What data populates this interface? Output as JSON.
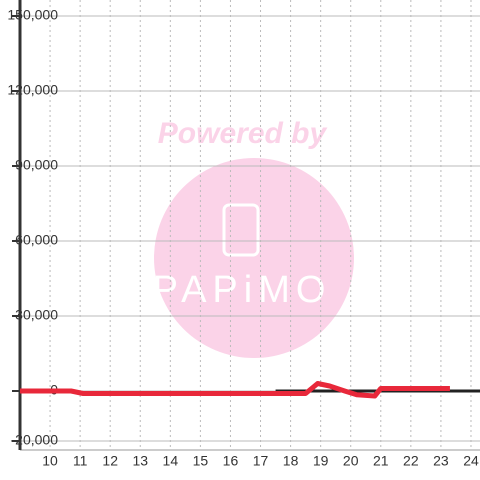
{
  "chart_data": {
    "type": "line",
    "watermark": {
      "title": "Powered by",
      "logo": "PAPiMO"
    },
    "series": [
      {
        "color": "#222222",
        "x": [
          17.5,
          24.3
        ],
        "values": [
          0,
          0
        ]
      },
      {
        "color": "#e8283a",
        "x": [
          9,
          10.7,
          11.1,
          17.5,
          18.5,
          18.9,
          19.3,
          19.8,
          20.2,
          20.8,
          21,
          23.3
        ],
        "values": [
          0,
          0,
          -1000,
          -1000,
          -1000,
          3000,
          2000,
          0,
          -1500,
          -2000,
          1000,
          1000
        ]
      }
    ],
    "xlim": [
      9,
      24.3
    ],
    "xticks": [
      10,
      11,
      12,
      13,
      14,
      15,
      16,
      17,
      18,
      19,
      20,
      21,
      22,
      23,
      24
    ],
    "ylim": [
      -20000,
      150000
    ],
    "yticks": [
      {
        "value": -20000,
        "label": "-20,000"
      },
      0,
      {
        "value": 30000,
        "label": "30,000"
      },
      {
        "value": 60000,
        "label": "60,000"
      },
      {
        "value": 90000,
        "label": "90,000"
      },
      {
        "value": 120000,
        "label": "120,000"
      },
      {
        "value": 150000,
        "label": "150,000"
      }
    ],
    "grid": true
  }
}
